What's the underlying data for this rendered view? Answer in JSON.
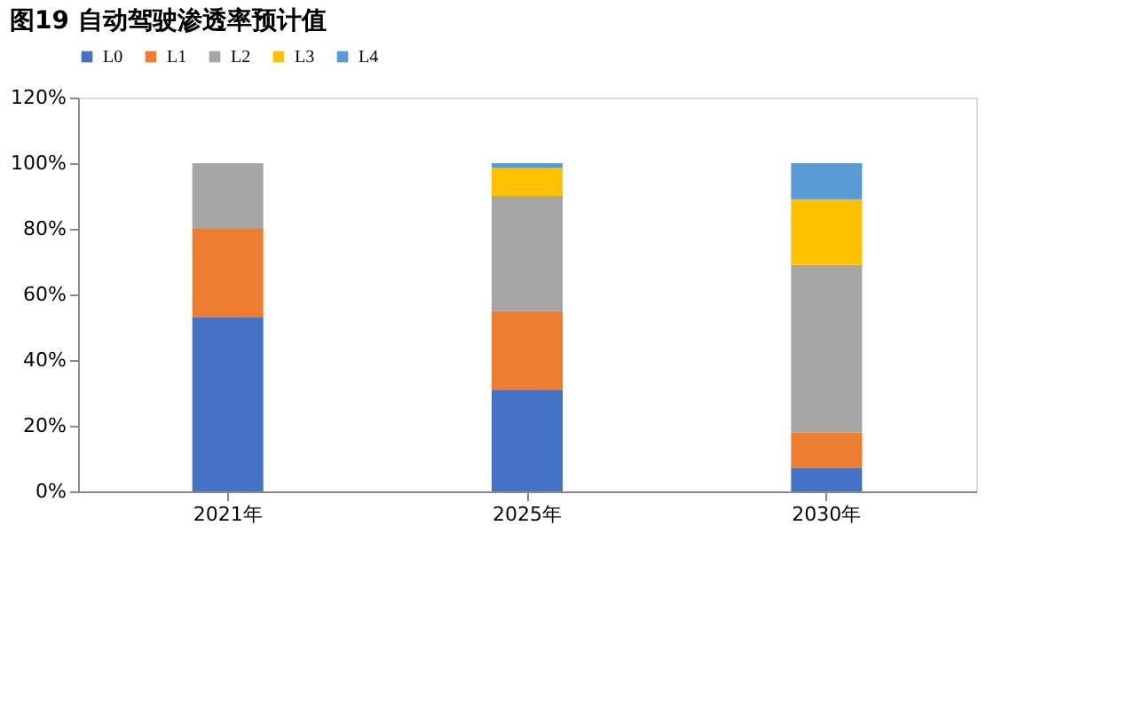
{
  "chart_data": {
    "type": "bar",
    "title": "图19 自动驾驶渗透率预计值",
    "stacked": true,
    "categories": [
      "2021年",
      "2025年",
      "2030年"
    ],
    "series": [
      {
        "name": "L0",
        "color": "#4472c4",
        "values": [
          53,
          31,
          7
        ]
      },
      {
        "name": "L1",
        "color": "#ed7d31",
        "values": [
          27,
          24,
          11
        ]
      },
      {
        "name": "L2",
        "color": "#a5a5a5",
        "values": [
          20,
          35,
          51
        ]
      },
      {
        "name": "L3",
        "color": "#ffc000",
        "values": [
          0,
          8.5,
          20
        ]
      },
      {
        "name": "L4",
        "color": "#5b9bd5",
        "values": [
          0,
          1.5,
          11
        ]
      }
    ],
    "ylim": [
      0,
      120
    ],
    "yticks": [
      {
        "value": 0,
        "label": "0%"
      },
      {
        "value": 20,
        "label": "20%"
      },
      {
        "value": 40,
        "label": "40%"
      },
      {
        "value": 60,
        "label": "60%"
      },
      {
        "value": 80,
        "label": "80%"
      },
      {
        "value": 100,
        "label": "100%"
      },
      {
        "value": 120,
        "label": "120%"
      }
    ],
    "grid": false,
    "legend": "top"
  }
}
